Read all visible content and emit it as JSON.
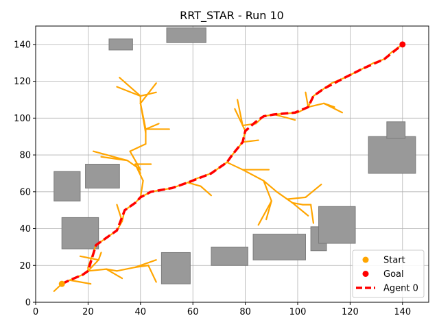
{
  "chart_data": {
    "type": "scatter",
    "title": "RRT_STAR - Run 10",
    "xlabel": "",
    "ylabel": "",
    "xlim": [
      0,
      150
    ],
    "ylim": [
      0,
      150
    ],
    "xticks": [
      0,
      20,
      40,
      60,
      80,
      100,
      120,
      140
    ],
    "yticks": [
      0,
      20,
      40,
      60,
      80,
      100,
      120,
      140
    ],
    "grid": true,
    "legend_position": "lower-right",
    "colors": {
      "obstacle": "#999999",
      "obstacle_edge": "#7a7a7a",
      "tree": "#FFA500",
      "start": "#FFA500",
      "goal": "#FF0000",
      "path": "#FF0000",
      "grid": "#b0b0b0"
    },
    "obstacles": [
      {
        "x": 28,
        "y": 137,
        "w": 9,
        "h": 6
      },
      {
        "x": 50,
        "y": 141,
        "w": 15,
        "h": 8
      },
      {
        "x": 7,
        "y": 55,
        "w": 10,
        "h": 16
      },
      {
        "x": 19,
        "y": 62,
        "w": 13,
        "h": 13
      },
      {
        "x": 10,
        "y": 29,
        "w": 14,
        "h": 17
      },
      {
        "x": 48,
        "y": 10,
        "w": 11,
        "h": 17
      },
      {
        "x": 67,
        "y": 20,
        "w": 14,
        "h": 10
      },
      {
        "x": 83,
        "y": 23,
        "w": 20,
        "h": 14
      },
      {
        "x": 105,
        "y": 28,
        "w": 6,
        "h": 13
      },
      {
        "x": 108,
        "y": 32,
        "w": 14,
        "h": 20
      },
      {
        "x": 127,
        "y": 70,
        "w": 18,
        "h": 20
      },
      {
        "x": 134,
        "y": 89,
        "w": 7,
        "h": 9
      }
    ],
    "tree_edges": [
      [
        [
          7,
          6
        ],
        [
          10,
          10
        ]
      ],
      [
        [
          10,
          10
        ],
        [
          13,
          12
        ]
      ],
      [
        [
          13,
          12
        ],
        [
          18,
          15
        ]
      ],
      [
        [
          13,
          12
        ],
        [
          21,
          10
        ]
      ],
      [
        [
          18,
          15
        ],
        [
          20,
          17
        ]
      ],
      [
        [
          20,
          17
        ],
        [
          27,
          18
        ]
      ],
      [
        [
          27,
          18
        ],
        [
          33,
          13
        ]
      ],
      [
        [
          27,
          18
        ],
        [
          31,
          17
        ]
      ],
      [
        [
          31,
          17
        ],
        [
          38,
          19
        ]
      ],
      [
        [
          38,
          19
        ],
        [
          46,
          23
        ]
      ],
      [
        [
          38,
          19
        ],
        [
          43,
          20
        ]
      ],
      [
        [
          43,
          20
        ],
        [
          46,
          11
        ]
      ],
      [
        [
          20,
          17
        ],
        [
          24,
          23
        ]
      ],
      [
        [
          24,
          23
        ],
        [
          17,
          25
        ]
      ],
      [
        [
          24,
          23
        ],
        [
          25,
          27
        ]
      ],
      [
        [
          20,
          17
        ],
        [
          20,
          19
        ]
      ],
      [
        [
          20,
          19
        ],
        [
          23,
          31
        ]
      ],
      [
        [
          23,
          31
        ],
        [
          27,
          35
        ]
      ],
      [
        [
          27,
          35
        ],
        [
          31,
          39
        ]
      ],
      [
        [
          31,
          39
        ],
        [
          33,
          44
        ]
      ],
      [
        [
          33,
          44
        ],
        [
          31,
          53
        ]
      ],
      [
        [
          33,
          44
        ],
        [
          34,
          50
        ]
      ],
      [
        [
          34,
          50
        ],
        [
          38,
          54
        ]
      ],
      [
        [
          38,
          54
        ],
        [
          40,
          57
        ]
      ],
      [
        [
          40,
          57
        ],
        [
          41,
          66
        ]
      ],
      [
        [
          41,
          66
        ],
        [
          38,
          75
        ]
      ],
      [
        [
          38,
          75
        ],
        [
          44,
          75
        ]
      ],
      [
        [
          38,
          75
        ],
        [
          40,
          70
        ]
      ],
      [
        [
          40,
          72
        ],
        [
          35,
          77
        ]
      ],
      [
        [
          35,
          77
        ],
        [
          22,
          82
        ]
      ],
      [
        [
          35,
          77
        ],
        [
          25,
          79
        ]
      ],
      [
        [
          40,
          72
        ],
        [
          36,
          82
        ]
      ],
      [
        [
          36,
          82
        ],
        [
          42,
          86
        ]
      ],
      [
        [
          42,
          86
        ],
        [
          42,
          94
        ]
      ],
      [
        [
          42,
          94
        ],
        [
          51,
          94
        ]
      ],
      [
        [
          42,
          94
        ],
        [
          47,
          97
        ]
      ],
      [
        [
          42,
          94
        ],
        [
          40,
          108
        ]
      ],
      [
        [
          40,
          108
        ],
        [
          42,
          92
        ]
      ],
      [
        [
          40,
          108
        ],
        [
          46,
          119
        ]
      ],
      [
        [
          40,
          108
        ],
        [
          40,
          112
        ]
      ],
      [
        [
          40,
          112
        ],
        [
          31,
          117
        ]
      ],
      [
        [
          40,
          112
        ],
        [
          46,
          114
        ]
      ],
      [
        [
          40,
          112
        ],
        [
          32,
          122
        ]
      ],
      [
        [
          40,
          57
        ],
        [
          44,
          60
        ]
      ],
      [
        [
          44,
          60
        ],
        [
          52,
          62
        ]
      ],
      [
        [
          52,
          62
        ],
        [
          58,
          65
        ]
      ],
      [
        [
          58,
          65
        ],
        [
          63,
          63
        ]
      ],
      [
        [
          63,
          63
        ],
        [
          67,
          58
        ]
      ],
      [
        [
          58,
          65
        ],
        [
          61,
          67
        ]
      ],
      [
        [
          61,
          67
        ],
        [
          67,
          70
        ]
      ],
      [
        [
          67,
          70
        ],
        [
          73,
          76
        ]
      ],
      [
        [
          73,
          76
        ],
        [
          75,
          80
        ]
      ],
      [
        [
          75,
          80
        ],
        [
          79,
          87
        ]
      ],
      [
        [
          79,
          87
        ],
        [
          80,
          93
        ]
      ],
      [
        [
          80,
          93
        ],
        [
          79,
          96
        ]
      ],
      [
        [
          79,
          96
        ],
        [
          76,
          105
        ]
      ],
      [
        [
          79,
          96
        ],
        [
          77,
          110
        ]
      ],
      [
        [
          79,
          96
        ],
        [
          84,
          97
        ]
      ],
      [
        [
          84,
          97
        ],
        [
          87,
          101
        ]
      ],
      [
        [
          87,
          101
        ],
        [
          91,
          102
        ]
      ],
      [
        [
          91,
          102
        ],
        [
          99,
          99
        ]
      ],
      [
        [
          91,
          102
        ],
        [
          100,
          103
        ]
      ],
      [
        [
          100,
          103
        ],
        [
          104,
          106
        ]
      ],
      [
        [
          104,
          106
        ],
        [
          103,
          114
        ]
      ],
      [
        [
          104,
          106
        ],
        [
          110,
          108
        ]
      ],
      [
        [
          110,
          108
        ],
        [
          117,
          103
        ]
      ],
      [
        [
          110,
          108
        ],
        [
          114,
          106
        ]
      ],
      [
        [
          104,
          106
        ],
        [
          106,
          112
        ]
      ],
      [
        [
          106,
          112
        ],
        [
          110,
          116
        ]
      ],
      [
        [
          110,
          116
        ],
        [
          113,
          119
        ]
      ],
      [
        [
          113,
          119
        ],
        [
          118,
          122
        ]
      ],
      [
        [
          118,
          122
        ],
        [
          125,
          127
        ]
      ],
      [
        [
          125,
          127
        ],
        [
          129,
          130
        ]
      ],
      [
        [
          129,
          130
        ],
        [
          133,
          132
        ]
      ],
      [
        [
          133,
          132
        ],
        [
          136,
          136
        ]
      ],
      [
        [
          136,
          136
        ],
        [
          140,
          140
        ]
      ],
      [
        [
          79,
          87
        ],
        [
          85,
          88
        ]
      ],
      [
        [
          73,
          76
        ],
        [
          79,
          72
        ]
      ],
      [
        [
          79,
          72
        ],
        [
          89,
          72
        ]
      ],
      [
        [
          79,
          72
        ],
        [
          87,
          66
        ]
      ],
      [
        [
          87,
          66
        ],
        [
          92,
          60
        ]
      ],
      [
        [
          92,
          60
        ],
        [
          96,
          56
        ]
      ],
      [
        [
          96,
          56
        ],
        [
          98,
          54
        ]
      ],
      [
        [
          98,
          54
        ],
        [
          102,
          53
        ]
      ],
      [
        [
          102,
          53
        ],
        [
          105,
          53
        ]
      ],
      [
        [
          105,
          53
        ],
        [
          106,
          43
        ]
      ],
      [
        [
          96,
          56
        ],
        [
          103,
          57
        ]
      ],
      [
        [
          103,
          57
        ],
        [
          109,
          64
        ]
      ],
      [
        [
          87,
          66
        ],
        [
          90,
          55
        ]
      ],
      [
        [
          90,
          55
        ],
        [
          85,
          42
        ]
      ],
      [
        [
          90,
          55
        ],
        [
          88,
          45
        ]
      ],
      [
        [
          98,
          54
        ],
        [
          104,
          47
        ]
      ]
    ],
    "series": [
      {
        "name": "Start",
        "marker": "circle",
        "points": [
          [
            10,
            10
          ]
        ]
      },
      {
        "name": "Goal",
        "marker": "circle",
        "points": [
          [
            140,
            140
          ]
        ]
      },
      {
        "name": "Agent 0",
        "line_style": "dashed",
        "points": [
          [
            10,
            10
          ],
          [
            13,
            12
          ],
          [
            18,
            15
          ],
          [
            20,
            17
          ],
          [
            23,
            31
          ],
          [
            27,
            35
          ],
          [
            31,
            39
          ],
          [
            34,
            50
          ],
          [
            38,
            54
          ],
          [
            40,
            57
          ],
          [
            44,
            60
          ],
          [
            52,
            62
          ],
          [
            58,
            65
          ],
          [
            67,
            70
          ],
          [
            73,
            76
          ],
          [
            75,
            80
          ],
          [
            79,
            87
          ],
          [
            80,
            93
          ],
          [
            84,
            98
          ],
          [
            87,
            101
          ],
          [
            91,
            102
          ],
          [
            99,
            103
          ],
          [
            104,
            106
          ],
          [
            106,
            112
          ],
          [
            110,
            116
          ],
          [
            118,
            122
          ],
          [
            125,
            127
          ],
          [
            133,
            132
          ],
          [
            140,
            140
          ]
        ]
      }
    ]
  }
}
